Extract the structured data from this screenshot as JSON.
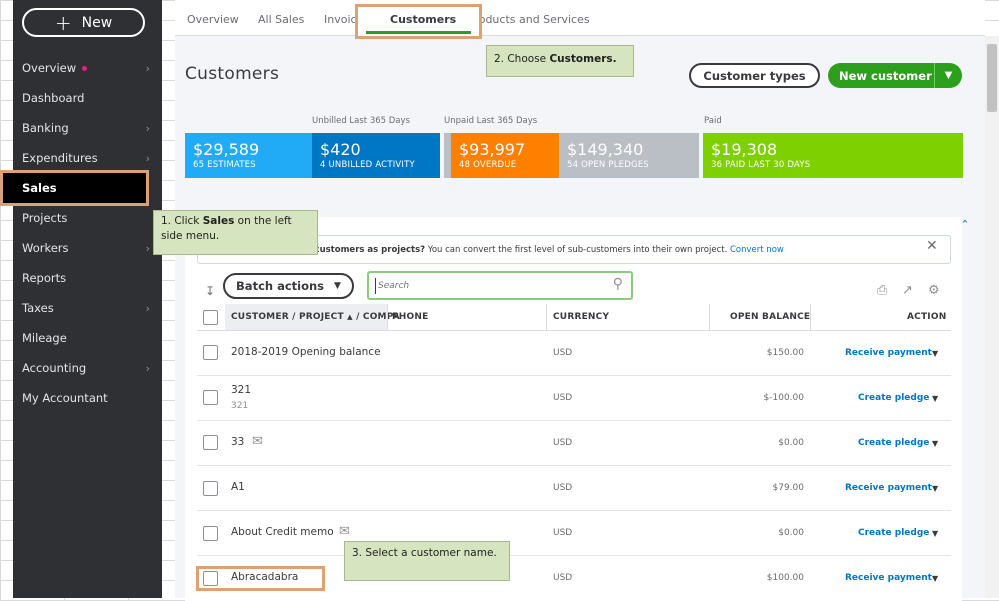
{
  "sidebar": {
    "new_label": "New",
    "items": [
      {
        "label": "Overview"
      },
      {
        "label": "Dashboard"
      },
      {
        "label": "Banking"
      },
      {
        "label": "Expenditures"
      },
      {
        "label": "Sales"
      },
      {
        "label": "Projects"
      },
      {
        "label": "Workers"
      },
      {
        "label": "Reports"
      },
      {
        "label": "Taxes"
      },
      {
        "label": "Mileage"
      },
      {
        "label": "Accounting"
      },
      {
        "label": "My Accountant"
      }
    ]
  },
  "tabs": [
    "Overview",
    "All Sales",
    "Invoices",
    "Customers",
    "Products and Services"
  ],
  "page": {
    "title": "Customers",
    "customer_types_label": "Customer types",
    "new_customer_label": "New customer"
  },
  "money_bar": {
    "unbilled_header": "Unbilled Last 365 Days",
    "unpaid_header": "Unpaid Last 365 Days",
    "paid_header": "Paid",
    "boxes": [
      {
        "amount": "$29,589",
        "caption": "65 ESTIMATES",
        "color": "#21abf6"
      },
      {
        "amount": "$420",
        "caption": "4 UNBILLED ACTIVITY",
        "color": "#0077c5"
      },
      {
        "amount": "$93,997",
        "caption": "48 OVERDUE",
        "color": "#ff8000"
      },
      {
        "amount": "$149,340",
        "caption": "54 OPEN PLEDGES",
        "color": "#babec5"
      },
      {
        "amount": "$19,308",
        "caption": "36 PAID LAST 30 DAYS",
        "color": "#7fd000"
      }
    ]
  },
  "tips": {
    "t1_pre": "1. Click ",
    "t1_bold": "Sales",
    "t1_post": " on the left side menu.",
    "t2_pre": "2. Choose ",
    "t2_bold": "Customers.",
    "t3": "3. Select a customer name."
  },
  "banner": {
    "text_bold": "-customers as projects?",
    "text_rest": " You can convert the first level of sub-customers into their own project.",
    "link": "Convert now"
  },
  "toolbar": {
    "batch_label": "Batch actions",
    "search_placeholder": "Search"
  },
  "table": {
    "headers": {
      "customer": "CUSTOMER / PROJECT",
      "sort": "▲",
      "company": "/ COMPA",
      "phone": "PHONE",
      "currency": "CURRENCY",
      "balance": "OPEN BALANCE",
      "action": "ACTION"
    },
    "rows": [
      {
        "name": "2018-2019 Opening balance",
        "sub": "",
        "currency": "USD",
        "balance": "$150.00",
        "action": "Receive payment"
      },
      {
        "name": "321",
        "sub": "321",
        "currency": "USD",
        "balance": "$-100.00",
        "action": "Create pledge"
      },
      {
        "name": "33",
        "sub": "",
        "currency": "USD",
        "balance": "$0.00",
        "action": "Create pledge"
      },
      {
        "name": "A1",
        "sub": "",
        "currency": "USD",
        "balance": "$79.00",
        "action": "Receive payment"
      },
      {
        "name": "About Credit memo",
        "sub": "",
        "currency": "USD",
        "balance": "$0.00",
        "action": "Create pledge"
      },
      {
        "name": "Abracadabra",
        "sub": "",
        "currency": "USD",
        "balance": "$100.00",
        "action": "Receive payment"
      }
    ]
  }
}
